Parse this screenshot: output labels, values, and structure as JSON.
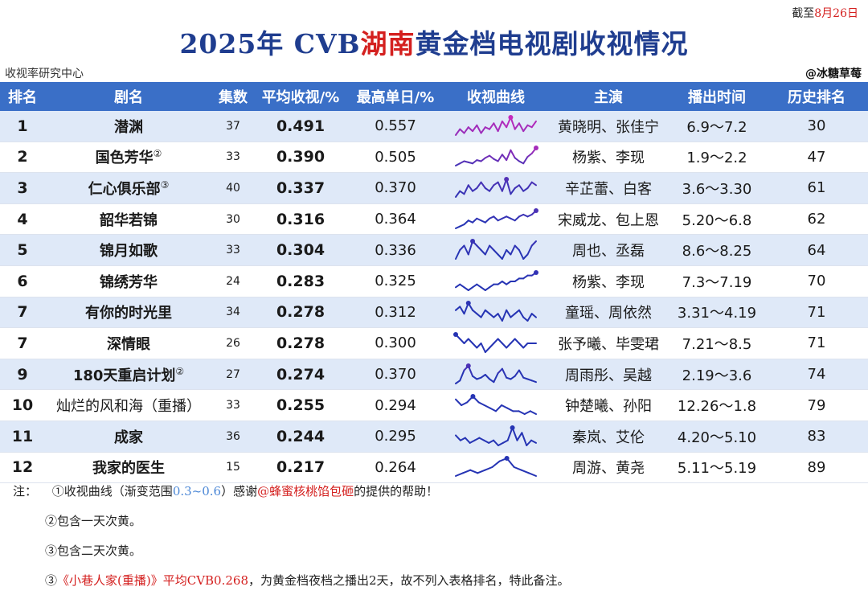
{
  "header": {
    "date_prefix": "截至",
    "date_value": "8月26日",
    "title_pre": "2025年 CVB",
    "title_highlight": "湖南",
    "title_post": "黄金档电视剧收视情况",
    "source": "收视率研究中心",
    "brand": "@冰糖草莓"
  },
  "columns": [
    "排名",
    "剧名",
    "集数",
    "平均收视/%",
    "最高单日/%",
    "收视曲线",
    "主演",
    "播出时间",
    "历史排名"
  ],
  "rows": [
    {
      "rank": "1",
      "title": "潜渊",
      "sup": "",
      "episodes": "37",
      "avg": "0.491",
      "peak": "0.557",
      "cast": "黄晓明、张佳宁",
      "air": "6.9～7.2",
      "history": "30"
    },
    {
      "rank": "2",
      "title": "国色芳华",
      "sup": "②",
      "episodes": "33",
      "avg": "0.390",
      "peak": "0.505",
      "cast": "杨紫、李现",
      "air": "1.9～2.2",
      "history": "47"
    },
    {
      "rank": "3",
      "title": "仁心俱乐部",
      "sup": "③",
      "episodes": "40",
      "avg": "0.337",
      "peak": "0.370",
      "cast": "辛芷蕾、白客",
      "air": "3.6～3.30",
      "history": "61"
    },
    {
      "rank": "4",
      "title": "韶华若锦",
      "sup": "",
      "episodes": "30",
      "avg": "0.316",
      "peak": "0.364",
      "cast": "宋威龙、包上恩",
      "air": "5.20～6.8",
      "history": "62"
    },
    {
      "rank": "5",
      "title": "锦月如歌",
      "sup": "",
      "episodes": "33",
      "avg": "0.304",
      "peak": "0.336",
      "cast": "周也、丞磊",
      "air": "8.6～8.25",
      "history": "64"
    },
    {
      "rank": "6",
      "title": "锦绣芳华",
      "sup": "",
      "episodes": "24",
      "avg": "0.283",
      "peak": "0.325",
      "cast": "杨紫、李现",
      "air": "7.3～7.19",
      "history": "70"
    },
    {
      "rank": "7",
      "title": "有你的时光里",
      "sup": "",
      "episodes": "34",
      "avg": "0.278",
      "peak": "0.312",
      "cast": "童瑶、周依然",
      "air": "3.31～4.19",
      "history": "71"
    },
    {
      "rank": "7",
      "title": "深情眼",
      "sup": "",
      "episodes": "26",
      "avg": "0.278",
      "peak": "0.300",
      "cast": "张予曦、毕雯珺",
      "air": "7.21～8.5",
      "history": "71"
    },
    {
      "rank": "9",
      "title": "180天重启计划",
      "sup": "②",
      "episodes": "27",
      "avg": "0.274",
      "peak": "0.370",
      "cast": "周雨彤、吴越",
      "air": "2.19～3.6",
      "history": "74"
    },
    {
      "rank": "10",
      "title": "灿烂的风和海（重播）",
      "sup": "",
      "episodes": "33",
      "avg": "0.255",
      "peak": "0.294",
      "cast": "钟楚曦、孙阳",
      "air": "12.26～1.8",
      "history": "79"
    },
    {
      "rank": "11",
      "title": "成家",
      "sup": "",
      "episodes": "36",
      "avg": "0.244",
      "peak": "0.295",
      "cast": "秦岚、艾伦",
      "air": "4.20～5.10",
      "history": "83"
    },
    {
      "rank": "12",
      "title": "我家的医生",
      "sup": "",
      "episodes": "15",
      "avg": "0.217",
      "peak": "0.264",
      "cast": "周游、黄尧",
      "air": "5.11～5.19",
      "history": "89"
    }
  ],
  "sparklines": [
    [
      0.46,
      0.49,
      0.47,
      0.5,
      0.48,
      0.51,
      0.47,
      0.5,
      0.49,
      0.52,
      0.48,
      0.53,
      0.5,
      0.55,
      0.49,
      0.52,
      0.48,
      0.51,
      0.5,
      0.53
    ],
    [
      0.34,
      0.36,
      0.38,
      0.37,
      0.36,
      0.39,
      0.38,
      0.41,
      0.43,
      0.4,
      0.38,
      0.44,
      0.39,
      0.48,
      0.41,
      0.38,
      0.36,
      0.42,
      0.45,
      0.5
    ],
    [
      0.31,
      0.33,
      0.32,
      0.35,
      0.33,
      0.34,
      0.36,
      0.34,
      0.33,
      0.35,
      0.36,
      0.33,
      0.37,
      0.32,
      0.34,
      0.35,
      0.33,
      0.34,
      0.36,
      0.35
    ],
    [
      0.27,
      0.28,
      0.29,
      0.31,
      0.3,
      0.32,
      0.31,
      0.3,
      0.32,
      0.33,
      0.31,
      0.32,
      0.33,
      0.32,
      0.31,
      0.33,
      0.34,
      0.33,
      0.34,
      0.36
    ],
    [
      0.29,
      0.31,
      0.32,
      0.3,
      0.33,
      0.32,
      0.31,
      0.3,
      0.32,
      0.31,
      0.3,
      0.29,
      0.31,
      0.3,
      0.32,
      0.31,
      0.29,
      0.3,
      0.32,
      0.33
    ],
    [
      0.27,
      0.28,
      0.27,
      0.26,
      0.27,
      0.28,
      0.27,
      0.26,
      0.27,
      0.28,
      0.28,
      0.29,
      0.28,
      0.29,
      0.29,
      0.3,
      0.3,
      0.31,
      0.31,
      0.32
    ],
    [
      0.29,
      0.3,
      0.28,
      0.31,
      0.29,
      0.28,
      0.27,
      0.29,
      0.28,
      0.27,
      0.28,
      0.26,
      0.29,
      0.27,
      0.28,
      0.29,
      0.27,
      0.26,
      0.28,
      0.27
    ],
    [
      0.3,
      0.29,
      0.28,
      0.29,
      0.28,
      0.27,
      0.28,
      0.26,
      0.27,
      0.28,
      0.29,
      0.28,
      0.27,
      0.28,
      0.29,
      0.28,
      0.27,
      0.28,
      0.28,
      0.28
    ],
    [
      0.24,
      0.26,
      0.33,
      0.36,
      0.29,
      0.27,
      0.28,
      0.3,
      0.27,
      0.25,
      0.31,
      0.34,
      0.28,
      0.27,
      0.29,
      0.33,
      0.28,
      0.27,
      0.26,
      0.25
    ],
    [
      0.28,
      0.26,
      0.27,
      0.29,
      0.27,
      0.26,
      0.25,
      0.24,
      0.26,
      0.25,
      0.24,
      0.24,
      0.23,
      0.24,
      0.23
    ],
    [
      0.26,
      0.24,
      0.25,
      0.23,
      0.24,
      0.25,
      0.24,
      0.23,
      0.24,
      0.22,
      0.23,
      0.24,
      0.29,
      0.24,
      0.27,
      0.22,
      0.24,
      0.23
    ],
    [
      0.2,
      0.21,
      0.22,
      0.21,
      0.22,
      0.23,
      0.25,
      0.26,
      0.23,
      0.22,
      0.21,
      0.2
    ]
  ],
  "notes": {
    "note_label": "注：",
    "note1_pre": "①收视曲线（渐变范围",
    "note1_range": "0.3~0.6",
    "note1_mid": "）感谢",
    "note1_name": "@蜂蜜核桃馅包砸",
    "note1_post": "的提供的帮助！",
    "note2": "②包含一天次黄。",
    "note3": "③包含二天次黄。",
    "note4_pre": "③",
    "note4_highlight": "《小巷人家(重播)》平均CVB0.268",
    "note4_post": "，为黄金档夜档之播出2天，故不列入表格排名，特此备注。"
  }
}
